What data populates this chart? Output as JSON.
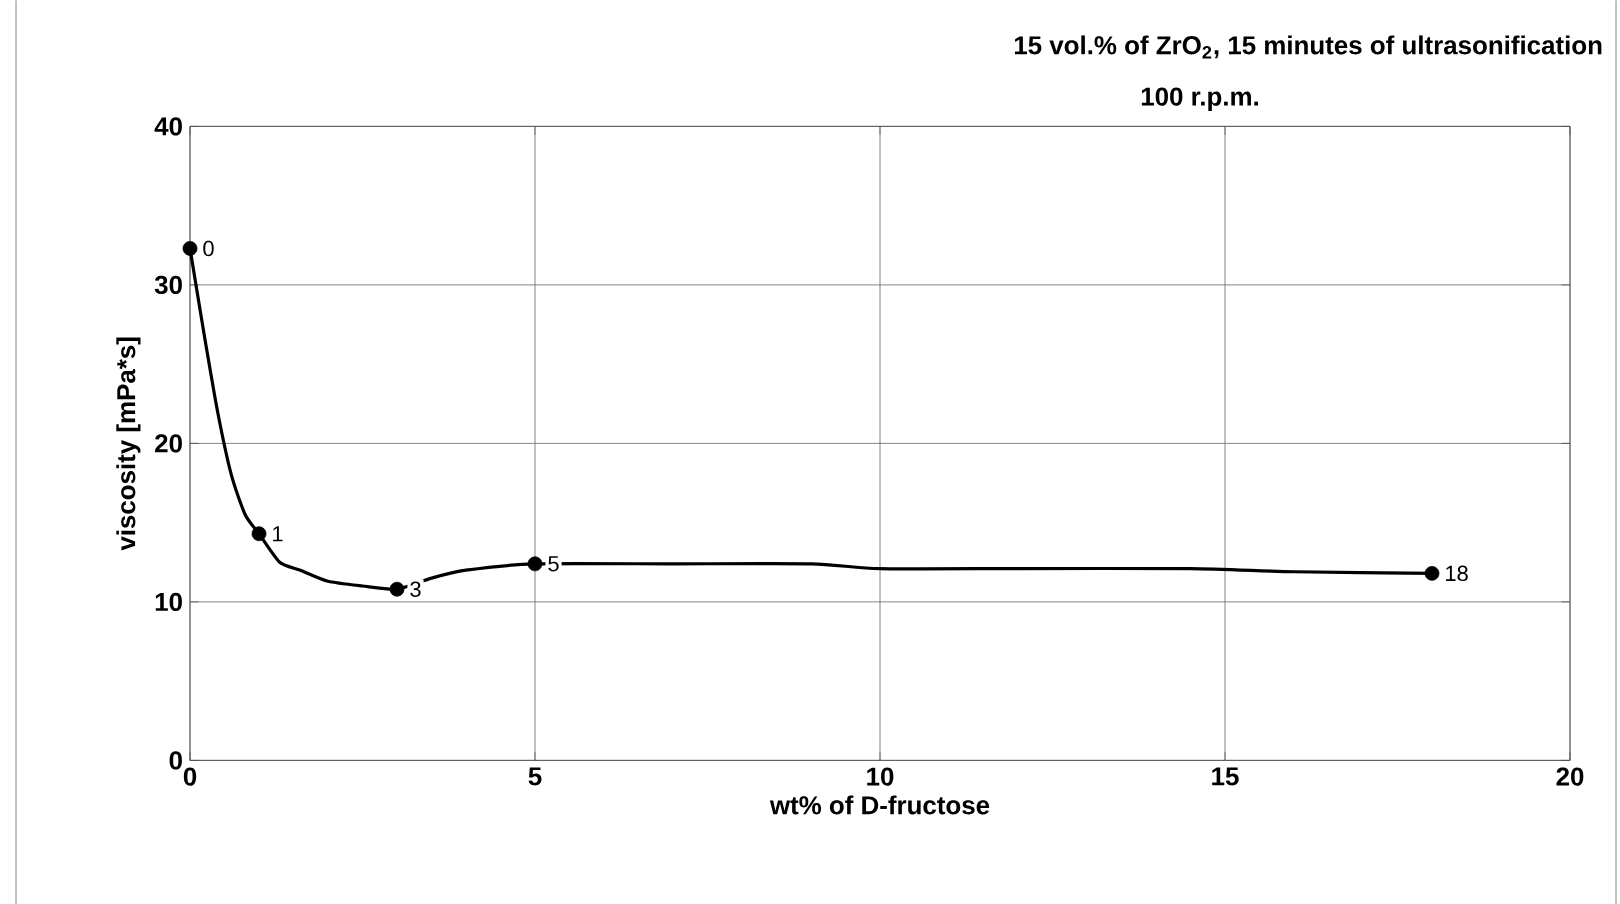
{
  "chart_data": {
    "type": "line",
    "title": "15 vol.% of ZrO$_{2}$, 15 minutes of ultrasonification",
    "subtitle": "100 r.p.m.",
    "xlabel": "wt% of D-fructose",
    "ylabel": "viscosity [mPa*s]",
    "series": [
      {
        "color": "#000000",
        "marker": "none",
        "x": [
          0,
          0.2,
          0.4,
          0.6,
          0.8,
          1,
          1.3,
          1.6,
          2,
          2.5,
          3,
          3.5,
          4,
          5,
          7,
          9,
          10,
          12,
          14.5,
          16,
          18
        ],
        "values": [
          32.3,
          27,
          22,
          18,
          15.5,
          14.3,
          12.5,
          12,
          11.3,
          11,
          10.8,
          11.5,
          12,
          12.4,
          12.4,
          12.4,
          12.1,
          12.1,
          12.1,
          11.9,
          11.8
        ]
      },
      {
        "type": "scatter",
        "color": "#000000",
        "marker": "circle",
        "x": [
          0,
          1,
          3,
          5,
          18
        ],
        "values": [
          32.3,
          14.3,
          10.8,
          12.4,
          11.8
        ]
      }
    ],
    "annotations": [
      {
        "text": "0",
        "x": 0,
        "y": 32.3
      },
      {
        "text": "1",
        "x": 1,
        "y": 14.3
      },
      {
        "text": "3",
        "x": 3,
        "y": 10.8
      },
      {
        "text": "5",
        "x": 5,
        "y": 12.4
      },
      {
        "text": "18",
        "x": 18,
        "y": 11.8
      }
    ],
    "xlim": [
      0,
      20
    ],
    "ylim": [
      0,
      40
    ],
    "xticks": [
      0,
      5,
      10,
      15,
      20
    ],
    "yticks": [
      0,
      10,
      20,
      30,
      40
    ],
    "grid": true
  }
}
